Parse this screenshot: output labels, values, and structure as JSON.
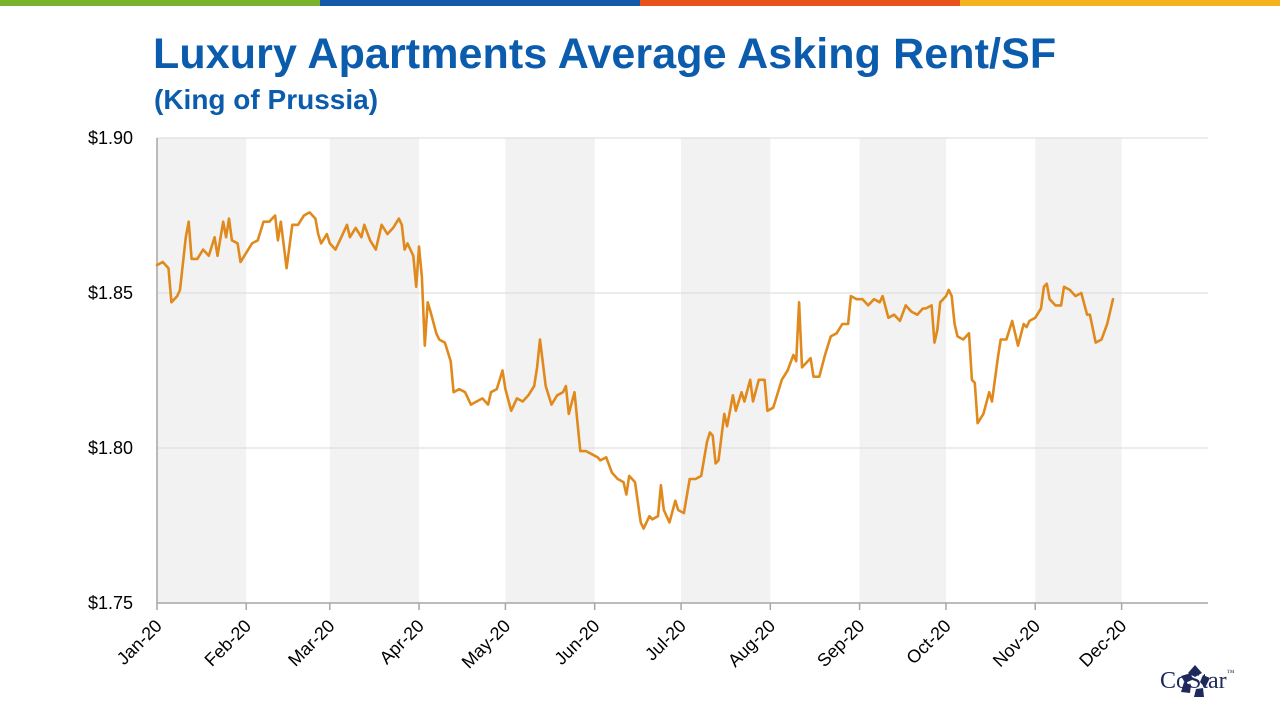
{
  "brand": {
    "bar_colors": [
      "#79b32b",
      "#1459a8",
      "#e8531c",
      "#f4b31a"
    ],
    "title_color": "#0b5cad",
    "line_color": "#e08a1e",
    "band_color": "#f2f2f2",
    "logo_name": "CoStar",
    "logo_tm": "™",
    "logo_color": "#1f2a5c"
  },
  "chart_data": {
    "type": "line",
    "title": "Luxury Apartments Average Asking Rent/SF",
    "subtitle": "(King of Prussia)",
    "xlabel": "",
    "ylabel": "",
    "ylim": [
      1.75,
      1.9
    ],
    "yticks": [
      1.75,
      1.8,
      1.85,
      1.9
    ],
    "ytick_labels": [
      "$1.75",
      "$1.80",
      "$1.85",
      "$1.90"
    ],
    "xlim": [
      "2020-01-01",
      "2020-12-31"
    ],
    "xtick_dates": [
      "2020-01-01",
      "2020-02-01",
      "2020-03-01",
      "2020-04-01",
      "2020-05-01",
      "2020-06-01",
      "2020-07-01",
      "2020-08-01",
      "2020-09-01",
      "2020-10-01",
      "2020-11-01",
      "2020-12-01"
    ],
    "xtick_labels": [
      "Jan-20",
      "Feb-20",
      "Mar-20",
      "Apr-20",
      "May-20",
      "Jun-20",
      "Jul-20",
      "Aug-20",
      "Sep-20",
      "Oct-20",
      "Nov-20",
      "Dec-20"
    ],
    "alternating_month_bands": true,
    "grid": "horizontal",
    "legend": "none",
    "series": [
      {
        "points": [
          [
            "2020-01-01",
            1.859
          ],
          [
            "2020-01-03",
            1.86
          ],
          [
            "2020-01-05",
            1.858
          ],
          [
            "2020-01-06",
            1.847
          ],
          [
            "2020-01-08",
            1.849
          ],
          [
            "2020-01-09",
            1.851
          ],
          [
            "2020-01-11",
            1.868
          ],
          [
            "2020-01-12",
            1.873
          ],
          [
            "2020-01-13",
            1.861
          ],
          [
            "2020-01-15",
            1.861
          ],
          [
            "2020-01-17",
            1.864
          ],
          [
            "2020-01-19",
            1.862
          ],
          [
            "2020-01-21",
            1.868
          ],
          [
            "2020-01-22",
            1.862
          ],
          [
            "2020-01-24",
            1.873
          ],
          [
            "2020-01-25",
            1.868
          ],
          [
            "2020-01-26",
            1.874
          ],
          [
            "2020-01-27",
            1.867
          ],
          [
            "2020-01-29",
            1.866
          ],
          [
            "2020-01-30",
            1.86
          ],
          [
            "2020-02-01",
            1.863
          ],
          [
            "2020-02-03",
            1.866
          ],
          [
            "2020-02-05",
            1.867
          ],
          [
            "2020-02-07",
            1.873
          ],
          [
            "2020-02-09",
            1.873
          ],
          [
            "2020-02-11",
            1.875
          ],
          [
            "2020-02-12",
            1.867
          ],
          [
            "2020-02-13",
            1.873
          ],
          [
            "2020-02-15",
            1.858
          ],
          [
            "2020-02-17",
            1.872
          ],
          [
            "2020-02-19",
            1.872
          ],
          [
            "2020-02-21",
            1.875
          ],
          [
            "2020-02-23",
            1.876
          ],
          [
            "2020-02-25",
            1.874
          ],
          [
            "2020-02-26",
            1.869
          ],
          [
            "2020-02-27",
            1.866
          ],
          [
            "2020-02-29",
            1.869
          ],
          [
            "2020-03-01",
            1.866
          ],
          [
            "2020-03-03",
            1.864
          ],
          [
            "2020-03-05",
            1.868
          ],
          [
            "2020-03-07",
            1.872
          ],
          [
            "2020-03-08",
            1.868
          ],
          [
            "2020-03-10",
            1.871
          ],
          [
            "2020-03-12",
            1.868
          ],
          [
            "2020-03-13",
            1.872
          ],
          [
            "2020-03-15",
            1.867
          ],
          [
            "2020-03-17",
            1.864
          ],
          [
            "2020-03-18",
            1.868
          ],
          [
            "2020-03-19",
            1.872
          ],
          [
            "2020-03-21",
            1.869
          ],
          [
            "2020-03-23",
            1.871
          ],
          [
            "2020-03-25",
            1.874
          ],
          [
            "2020-03-26",
            1.872
          ],
          [
            "2020-03-27",
            1.864
          ],
          [
            "2020-03-28",
            1.866
          ],
          [
            "2020-03-30",
            1.862
          ],
          [
            "2020-03-31",
            1.852
          ],
          [
            "2020-04-01",
            1.865
          ],
          [
            "2020-04-02",
            1.855
          ],
          [
            "2020-04-03",
            1.833
          ],
          [
            "2020-04-04",
            1.847
          ],
          [
            "2020-04-05",
            1.844
          ],
          [
            "2020-04-07",
            1.837
          ],
          [
            "2020-04-08",
            1.835
          ],
          [
            "2020-04-10",
            1.834
          ],
          [
            "2020-04-12",
            1.828
          ],
          [
            "2020-04-13",
            1.818
          ],
          [
            "2020-04-15",
            1.819
          ],
          [
            "2020-04-17",
            1.818
          ],
          [
            "2020-04-19",
            1.814
          ],
          [
            "2020-04-21",
            1.815
          ],
          [
            "2020-04-23",
            1.816
          ],
          [
            "2020-04-25",
            1.814
          ],
          [
            "2020-04-26",
            1.818
          ],
          [
            "2020-04-28",
            1.819
          ],
          [
            "2020-04-30",
            1.825
          ],
          [
            "2020-05-01",
            1.819
          ],
          [
            "2020-05-03",
            1.812
          ],
          [
            "2020-05-05",
            1.816
          ],
          [
            "2020-05-07",
            1.815
          ],
          [
            "2020-05-09",
            1.817
          ],
          [
            "2020-05-11",
            1.82
          ],
          [
            "2020-05-12",
            1.826
          ],
          [
            "2020-05-13",
            1.835
          ],
          [
            "2020-05-15",
            1.82
          ],
          [
            "2020-05-17",
            1.814
          ],
          [
            "2020-05-19",
            1.817
          ],
          [
            "2020-05-21",
            1.818
          ],
          [
            "2020-05-22",
            1.82
          ],
          [
            "2020-05-23",
            1.811
          ],
          [
            "2020-05-25",
            1.818
          ],
          [
            "2020-05-27",
            1.799
          ],
          [
            "2020-05-29",
            1.799
          ],
          [
            "2020-05-31",
            1.798
          ],
          [
            "2020-06-02",
            1.797
          ],
          [
            "2020-06-03",
            1.796
          ],
          [
            "2020-06-05",
            1.797
          ],
          [
            "2020-06-07",
            1.792
          ],
          [
            "2020-06-09",
            1.79
          ],
          [
            "2020-06-11",
            1.789
          ],
          [
            "2020-06-12",
            1.785
          ],
          [
            "2020-06-13",
            1.791
          ],
          [
            "2020-06-15",
            1.789
          ],
          [
            "2020-06-17",
            1.776
          ],
          [
            "2020-06-18",
            1.774
          ],
          [
            "2020-06-20",
            1.778
          ],
          [
            "2020-06-21",
            1.777
          ],
          [
            "2020-06-23",
            1.778
          ],
          [
            "2020-06-24",
            1.788
          ],
          [
            "2020-06-25",
            1.78
          ],
          [
            "2020-06-27",
            1.776
          ],
          [
            "2020-06-29",
            1.783
          ],
          [
            "2020-06-30",
            1.78
          ],
          [
            "2020-07-02",
            1.779
          ],
          [
            "2020-07-04",
            1.79
          ],
          [
            "2020-07-06",
            1.79
          ],
          [
            "2020-07-08",
            1.791
          ],
          [
            "2020-07-10",
            1.802
          ],
          [
            "2020-07-11",
            1.805
          ],
          [
            "2020-07-12",
            1.804
          ],
          [
            "2020-07-13",
            1.795
          ],
          [
            "2020-07-14",
            1.796
          ],
          [
            "2020-07-16",
            1.811
          ],
          [
            "2020-07-17",
            1.807
          ],
          [
            "2020-07-19",
            1.817
          ],
          [
            "2020-07-20",
            1.812
          ],
          [
            "2020-07-22",
            1.818
          ],
          [
            "2020-07-23",
            1.815
          ],
          [
            "2020-07-25",
            1.822
          ],
          [
            "2020-07-26",
            1.815
          ],
          [
            "2020-07-28",
            1.822
          ],
          [
            "2020-07-30",
            1.822
          ],
          [
            "2020-07-31",
            1.812
          ],
          [
            "2020-08-02",
            1.813
          ],
          [
            "2020-08-03",
            1.816
          ],
          [
            "2020-08-05",
            1.822
          ],
          [
            "2020-08-07",
            1.825
          ],
          [
            "2020-08-09",
            1.83
          ],
          [
            "2020-08-10",
            1.828
          ],
          [
            "2020-08-11",
            1.847
          ],
          [
            "2020-08-12",
            1.826
          ],
          [
            "2020-08-14",
            1.828
          ],
          [
            "2020-08-15",
            1.829
          ],
          [
            "2020-08-16",
            1.823
          ],
          [
            "2020-08-18",
            1.823
          ],
          [
            "2020-08-20",
            1.83
          ],
          [
            "2020-08-22",
            1.836
          ],
          [
            "2020-08-24",
            1.837
          ],
          [
            "2020-08-26",
            1.84
          ],
          [
            "2020-08-28",
            1.84
          ],
          [
            "2020-08-29",
            1.849
          ],
          [
            "2020-08-31",
            1.848
          ],
          [
            "2020-09-02",
            1.848
          ],
          [
            "2020-09-04",
            1.846
          ],
          [
            "2020-09-06",
            1.848
          ],
          [
            "2020-09-08",
            1.847
          ],
          [
            "2020-09-09",
            1.849
          ],
          [
            "2020-09-11",
            1.842
          ],
          [
            "2020-09-13",
            1.843
          ],
          [
            "2020-09-15",
            1.841
          ],
          [
            "2020-09-17",
            1.846
          ],
          [
            "2020-09-19",
            1.844
          ],
          [
            "2020-09-21",
            1.843
          ],
          [
            "2020-09-23",
            1.845
          ],
          [
            "2020-09-24",
            1.845
          ],
          [
            "2020-09-26",
            1.846
          ],
          [
            "2020-09-27",
            1.834
          ],
          [
            "2020-09-28",
            1.838
          ],
          [
            "2020-09-29",
            1.847
          ],
          [
            "2020-10-01",
            1.849
          ],
          [
            "2020-10-02",
            1.851
          ],
          [
            "2020-10-03",
            1.849
          ],
          [
            "2020-10-04",
            1.84
          ],
          [
            "2020-10-05",
            1.836
          ],
          [
            "2020-10-07",
            1.835
          ],
          [
            "2020-10-09",
            1.837
          ],
          [
            "2020-10-10",
            1.822
          ],
          [
            "2020-10-11",
            1.821
          ],
          [
            "2020-10-12",
            1.808
          ],
          [
            "2020-10-14",
            1.811
          ],
          [
            "2020-10-16",
            1.818
          ],
          [
            "2020-10-17",
            1.815
          ],
          [
            "2020-10-19",
            1.829
          ],
          [
            "2020-10-20",
            1.835
          ],
          [
            "2020-10-22",
            1.835
          ],
          [
            "2020-10-24",
            1.841
          ],
          [
            "2020-10-25",
            1.837
          ],
          [
            "2020-10-26",
            1.833
          ],
          [
            "2020-10-28",
            1.84
          ],
          [
            "2020-10-29",
            1.839
          ],
          [
            "2020-10-30",
            1.841
          ],
          [
            "2020-11-01",
            1.842
          ],
          [
            "2020-11-03",
            1.845
          ],
          [
            "2020-11-04",
            1.852
          ],
          [
            "2020-11-05",
            1.853
          ],
          [
            "2020-11-06",
            1.848
          ],
          [
            "2020-11-08",
            1.846
          ],
          [
            "2020-11-10",
            1.846
          ],
          [
            "2020-11-11",
            1.852
          ],
          [
            "2020-11-13",
            1.851
          ],
          [
            "2020-11-15",
            1.849
          ],
          [
            "2020-11-17",
            1.85
          ],
          [
            "2020-11-19",
            1.843
          ],
          [
            "2020-11-20",
            1.843
          ],
          [
            "2020-11-22",
            1.834
          ],
          [
            "2020-11-24",
            1.835
          ],
          [
            "2020-11-26",
            1.84
          ],
          [
            "2020-11-28",
            1.848
          ]
        ]
      }
    ]
  }
}
